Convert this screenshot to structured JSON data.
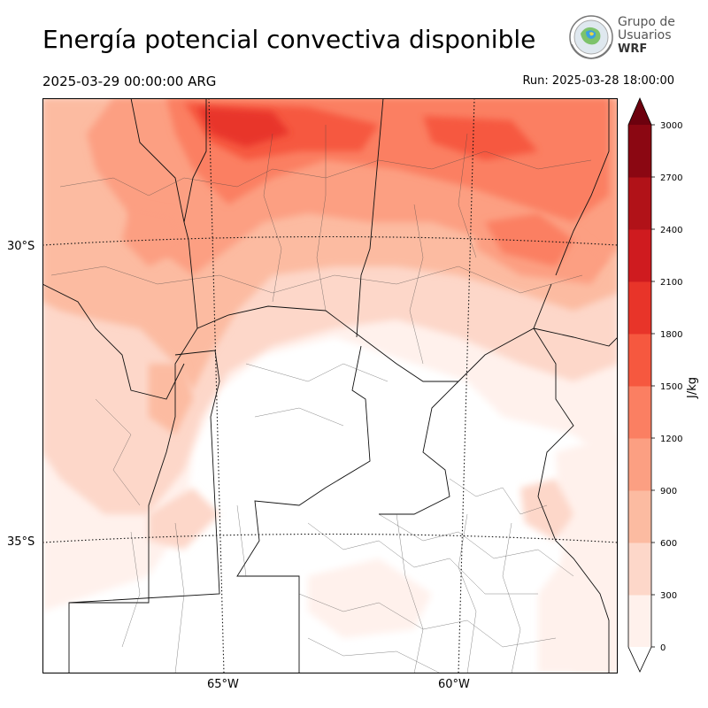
{
  "header": {
    "title": "Energía potencial convectiva disponible",
    "valid_time": "2025-03-29 00:00:00 ARG",
    "run_time": "Run: 2025-03-28 18:00:00"
  },
  "logo": {
    "line1": "Grupo de",
    "line2": "Usuarios",
    "line3": "WRF"
  },
  "map": {
    "lat_labels": [
      "30°S",
      "35°S"
    ],
    "lon_labels": [
      "65°W",
      "60°W"
    ]
  },
  "colorbar": {
    "unit": "J/kg",
    "levels": [
      0,
      300,
      600,
      900,
      1200,
      1500,
      1800,
      2100,
      2400,
      2700,
      3000
    ],
    "level_labels": [
      "0",
      "300",
      "600",
      "900",
      "1200",
      "1500",
      "1800",
      "2100",
      "2400",
      "2700",
      "3000"
    ],
    "colors": [
      "#fff1ec",
      "#fdd7c9",
      "#fcbba1",
      "#fc9f82",
      "#fb7f62",
      "#f6583f",
      "#e83429",
      "#cf1b1f",
      "#b11218",
      "#8b0712",
      "#6d010e"
    ],
    "extend": "both"
  }
}
